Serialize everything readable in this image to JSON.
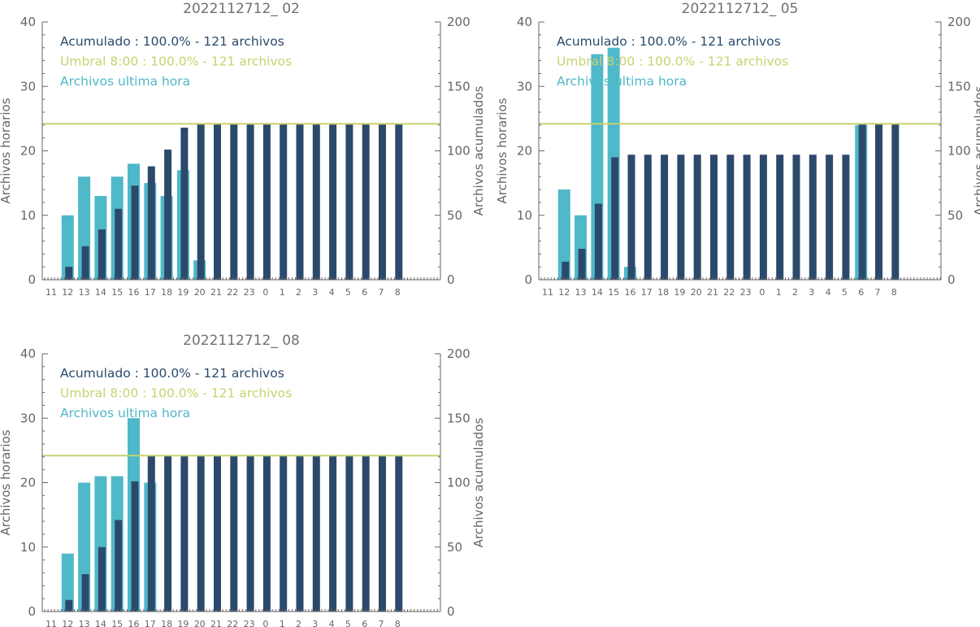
{
  "colors": {
    "hourly": "#4fb8c9",
    "cumulative": "#2b4a6b",
    "threshold": "#c8d26e",
    "axis": "#666666",
    "title": "#707070"
  },
  "chart_data": [
    {
      "type": "bar",
      "title": "2022112712_ 02",
      "ylabel": "Archivos horarios",
      "ylabel_right": "Archivos acumulados",
      "ylim": [
        0,
        40
      ],
      "ylim_right": [
        0,
        200
      ],
      "yticks": [
        0,
        10,
        20,
        30,
        40
      ],
      "yticks_right": [
        0,
        50,
        100,
        150,
        200
      ],
      "categories": [
        "11",
        "12",
        "13",
        "14",
        "15",
        "16",
        "17",
        "18",
        "19",
        "20",
        "21",
        "22",
        "23",
        "0",
        "1",
        "2",
        "3",
        "4",
        "5",
        "6",
        "7",
        "8"
      ],
      "threshold_right": 121,
      "legend": [
        {
          "text": "Acumulado : 100.0% - 121 archivos",
          "color": "cumulative"
        },
        {
          "text": "Umbral 8:00 : 100.0% - 121 archivos",
          "color": "threshold"
        },
        {
          "text": "Archivos ultima hora",
          "color": "hourly"
        }
      ],
      "series": [
        {
          "name": "Archivos ultima hora",
          "axis": "left",
          "values": [
            0,
            10,
            16,
            13,
            16,
            18,
            15,
            13,
            17,
            3,
            0,
            0,
            0,
            0,
            0,
            0,
            0,
            0,
            0,
            0,
            0,
            0
          ]
        },
        {
          "name": "Acumulado",
          "axis": "right",
          "values": [
            0,
            10,
            26,
            39,
            55,
            73,
            88,
            101,
            118,
            121,
            121,
            121,
            121,
            121,
            121,
            121,
            121,
            121,
            121,
            121,
            121,
            121
          ]
        }
      ]
    },
    {
      "type": "bar",
      "title": "2022112712_ 05",
      "ylabel": "Archivos horarios",
      "ylabel_right": "Archivos acumulados",
      "ylim": [
        0,
        40
      ],
      "ylim_right": [
        0,
        200
      ],
      "yticks": [
        0,
        10,
        20,
        30,
        40
      ],
      "yticks_right": [
        0,
        50,
        100,
        150,
        200
      ],
      "categories": [
        "11",
        "12",
        "13",
        "14",
        "15",
        "16",
        "17",
        "18",
        "19",
        "20",
        "21",
        "22",
        "23",
        "0",
        "1",
        "2",
        "3",
        "4",
        "5",
        "6",
        "7",
        "8"
      ],
      "threshold_right": 121,
      "legend": [
        {
          "text": "Acumulado : 100.0% - 121 archivos",
          "color": "cumulative"
        },
        {
          "text": "Umbral 8:00 : 100.0% - 121 archivos",
          "color": "threshold"
        },
        {
          "text": "Archivos ultima hora",
          "color": "hourly"
        }
      ],
      "series": [
        {
          "name": "Archivos ultima hora",
          "axis": "left",
          "values": [
            0,
            14,
            10,
            35,
            36,
            2,
            0,
            0,
            0,
            0,
            0,
            0,
            0,
            0,
            0,
            0,
            0,
            0,
            0,
            24,
            0,
            0
          ]
        },
        {
          "name": "Acumulado",
          "axis": "right",
          "values": [
            0,
            14,
            24,
            59,
            95,
            97,
            97,
            97,
            97,
            97,
            97,
            97,
            97,
            97,
            97,
            97,
            97,
            97,
            97,
            121,
            121,
            121
          ]
        }
      ]
    },
    {
      "type": "bar",
      "title": "2022112712_ 08",
      "ylabel": "Archivos horarios",
      "ylabel_right": "Archivos acumulados",
      "ylim": [
        0,
        40
      ],
      "ylim_right": [
        0,
        200
      ],
      "yticks": [
        0,
        10,
        20,
        30,
        40
      ],
      "yticks_right": [
        0,
        50,
        100,
        150,
        200
      ],
      "categories": [
        "11",
        "12",
        "13",
        "14",
        "15",
        "16",
        "17",
        "18",
        "19",
        "20",
        "21",
        "22",
        "23",
        "0",
        "1",
        "2",
        "3",
        "4",
        "5",
        "6",
        "7",
        "8"
      ],
      "threshold_right": 121,
      "legend": [
        {
          "text": "Acumulado : 100.0% - 121 archivos",
          "color": "cumulative"
        },
        {
          "text": "Umbral 8:00 : 100.0% - 121 archivos",
          "color": "threshold"
        },
        {
          "text": "Archivos ultima hora",
          "color": "hourly"
        }
      ],
      "series": [
        {
          "name": "Archivos ultima hora",
          "axis": "left",
          "values": [
            0,
            9,
            20,
            21,
            21,
            30,
            20,
            0,
            0,
            0,
            0,
            0,
            0,
            0,
            0,
            0,
            0,
            0,
            0,
            0,
            0,
            0
          ]
        },
        {
          "name": "Acumulado",
          "axis": "right",
          "values": [
            0,
            9,
            29,
            50,
            71,
            101,
            121,
            121,
            121,
            121,
            121,
            121,
            121,
            121,
            121,
            121,
            121,
            121,
            121,
            121,
            121,
            121
          ]
        }
      ]
    }
  ]
}
